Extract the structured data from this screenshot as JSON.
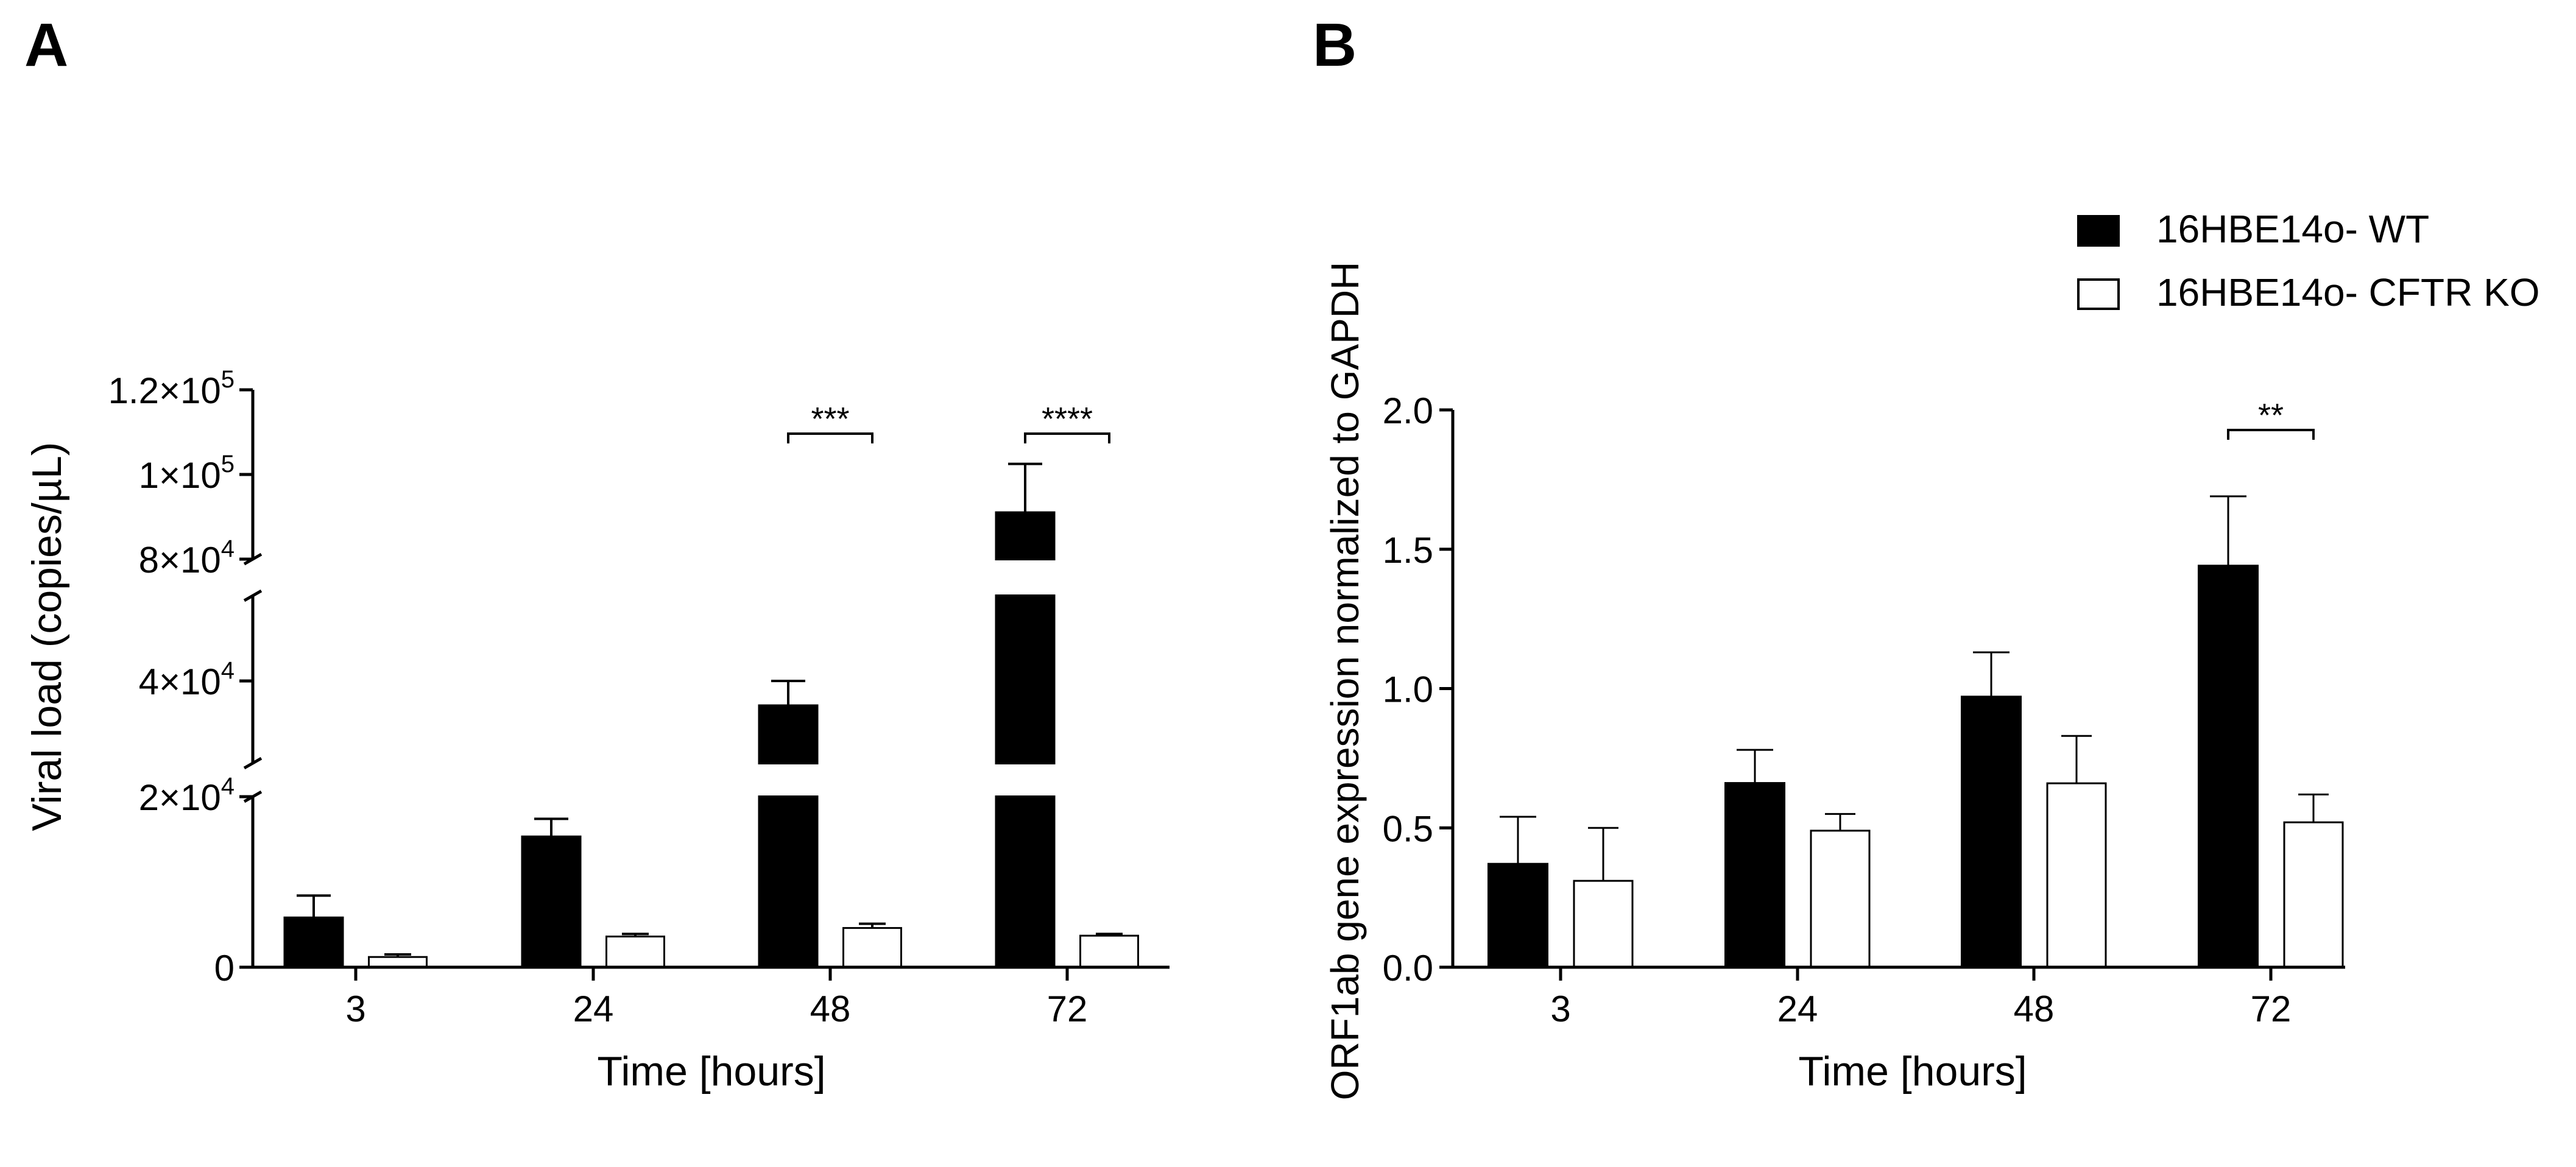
{
  "panels": {
    "a": {
      "label": "A"
    },
    "b": {
      "label": "B"
    }
  },
  "legend": {
    "wt": "16HBE14o- WT",
    "ko": "16HBE14o- CFTR KO"
  },
  "colors": {
    "wt": "#000000",
    "ko": "#ffffff",
    "axis": "#000000"
  },
  "chart_data": [
    {
      "type": "bar",
      "panel": "A",
      "xlabel": "Time [hours]",
      "ylabel": "Viral load (copies/µL)",
      "categories": [
        "3",
        "24",
        "48",
        "72"
      ],
      "axis_break": true,
      "yticks": [
        {
          "value": 0,
          "base": "0",
          "exp": ""
        },
        {
          "value": 20000,
          "base": "2×10",
          "exp": "4"
        },
        {
          "value": 40000,
          "base": "4×10",
          "exp": "4"
        },
        {
          "value": 80000,
          "base": "8×10",
          "exp": "4"
        },
        {
          "value": 100000,
          "base": "1×10",
          "exp": "5"
        },
        {
          "value": 120000,
          "base": "1.2×10",
          "exp": "5"
        }
      ],
      "series": [
        {
          "name": "16HBE14o- WT",
          "values": [
            5800,
            15300,
            34000,
            91000
          ],
          "errors": [
            2600,
            2100,
            6000,
            11500
          ]
        },
        {
          "name": "16HBE14o- CFTR KO",
          "values": [
            1200,
            3600,
            4600,
            3700
          ],
          "errors": [
            300,
            300,
            500,
            200
          ]
        }
      ],
      "significance": [
        {
          "category_index": 2,
          "text": "***"
        },
        {
          "category_index": 3,
          "text": "****"
        }
      ]
    },
    {
      "type": "bar",
      "panel": "B",
      "xlabel": "Time [hours]",
      "ylabel": "ORF1ab gene expression normalized to GAPDH",
      "categories": [
        "3",
        "24",
        "48",
        "72"
      ],
      "ylim": [
        0,
        2.0
      ],
      "yticks": [
        "0.0",
        "0.5",
        "1.0",
        "1.5",
        "2.0"
      ],
      "series": [
        {
          "name": "16HBE14o- WT",
          "values": [
            0.37,
            0.66,
            0.97,
            1.44
          ],
          "errors": [
            0.17,
            0.12,
            0.16,
            0.25
          ]
        },
        {
          "name": "16HBE14o- CFTR KO",
          "values": [
            0.31,
            0.49,
            0.66,
            0.52
          ],
          "errors": [
            0.19,
            0.06,
            0.17,
            0.1
          ]
        }
      ],
      "significance": [
        {
          "category_index": 3,
          "text": "**"
        }
      ]
    }
  ]
}
